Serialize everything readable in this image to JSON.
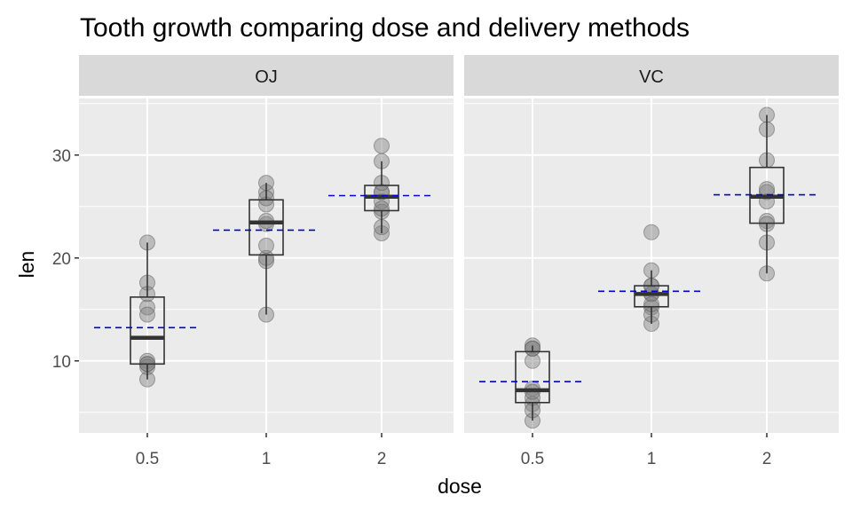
{
  "chart_data": {
    "type": "box",
    "title": "Tooth growth comparing dose and delivery methods",
    "xlabel": "dose",
    "ylabel": "len",
    "ylim": [
      3,
      35.5
    ],
    "yticks": [
      10,
      20,
      30
    ],
    "categories": [
      "0.5",
      "1",
      "2"
    ],
    "grid": true,
    "colors": {
      "panel_bg": "#ebebeb",
      "strip_bg": "#d9d9d9",
      "grid": "#ffffff",
      "points": "#808080",
      "box": "#333333",
      "mean_line": "#0000cc"
    },
    "panels": [
      {
        "label": "OJ",
        "groups": [
          {
            "dose": "0.5",
            "points": [
              15.2,
              21.5,
              17.6,
              9.7,
              14.5,
              10.0,
              8.2,
              9.4,
              16.5,
              9.7
            ],
            "q1": 9.7,
            "median": 12.25,
            "q3": 16.2,
            "whisker_low": 8.2,
            "whisker_high": 21.5,
            "mean": 13.23
          },
          {
            "dose": "1",
            "points": [
              19.7,
              23.3,
              23.6,
              26.4,
              20.0,
              25.2,
              25.8,
              21.2,
              14.5,
              27.3
            ],
            "q1": 20.3,
            "median": 23.45,
            "q3": 25.65,
            "whisker_low": 14.5,
            "whisker_high": 27.3,
            "mean": 22.7
          },
          {
            "dose": "2",
            "points": [
              25.5,
              26.4,
              22.4,
              24.5,
              24.8,
              30.9,
              26.4,
              27.3,
              29.4,
              23.0
            ],
            "q1": 24.6,
            "median": 25.95,
            "q3": 27.05,
            "whisker_low": 22.4,
            "whisker_high": 29.4,
            "mean": 26.06
          }
        ]
      },
      {
        "label": "VC",
        "groups": [
          {
            "dose": "0.5",
            "points": [
              4.2,
              11.5,
              7.3,
              5.8,
              6.4,
              10.0,
              11.2,
              11.2,
              5.2,
              7.0
            ],
            "q1": 5.95,
            "median": 7.15,
            "q3": 10.9,
            "whisker_low": 4.2,
            "whisker_high": 11.5,
            "mean": 7.98
          },
          {
            "dose": "1",
            "points": [
              16.5,
              16.5,
              15.2,
              17.3,
              22.5,
              17.3,
              13.6,
              14.5,
              18.8,
              15.5
            ],
            "q1": 15.26,
            "median": 16.5,
            "q3": 17.3,
            "whisker_low": 13.6,
            "whisker_high": 18.8,
            "mean": 16.77
          },
          {
            "dose": "2",
            "points": [
              23.6,
              18.5,
              33.9,
              25.5,
              26.4,
              32.5,
              26.7,
              21.5,
              23.3,
              29.5
            ],
            "q1": 23.38,
            "median": 25.95,
            "q3": 28.8,
            "whisker_low": 18.5,
            "whisker_high": 33.9,
            "mean": 26.14
          }
        ]
      }
    ]
  }
}
